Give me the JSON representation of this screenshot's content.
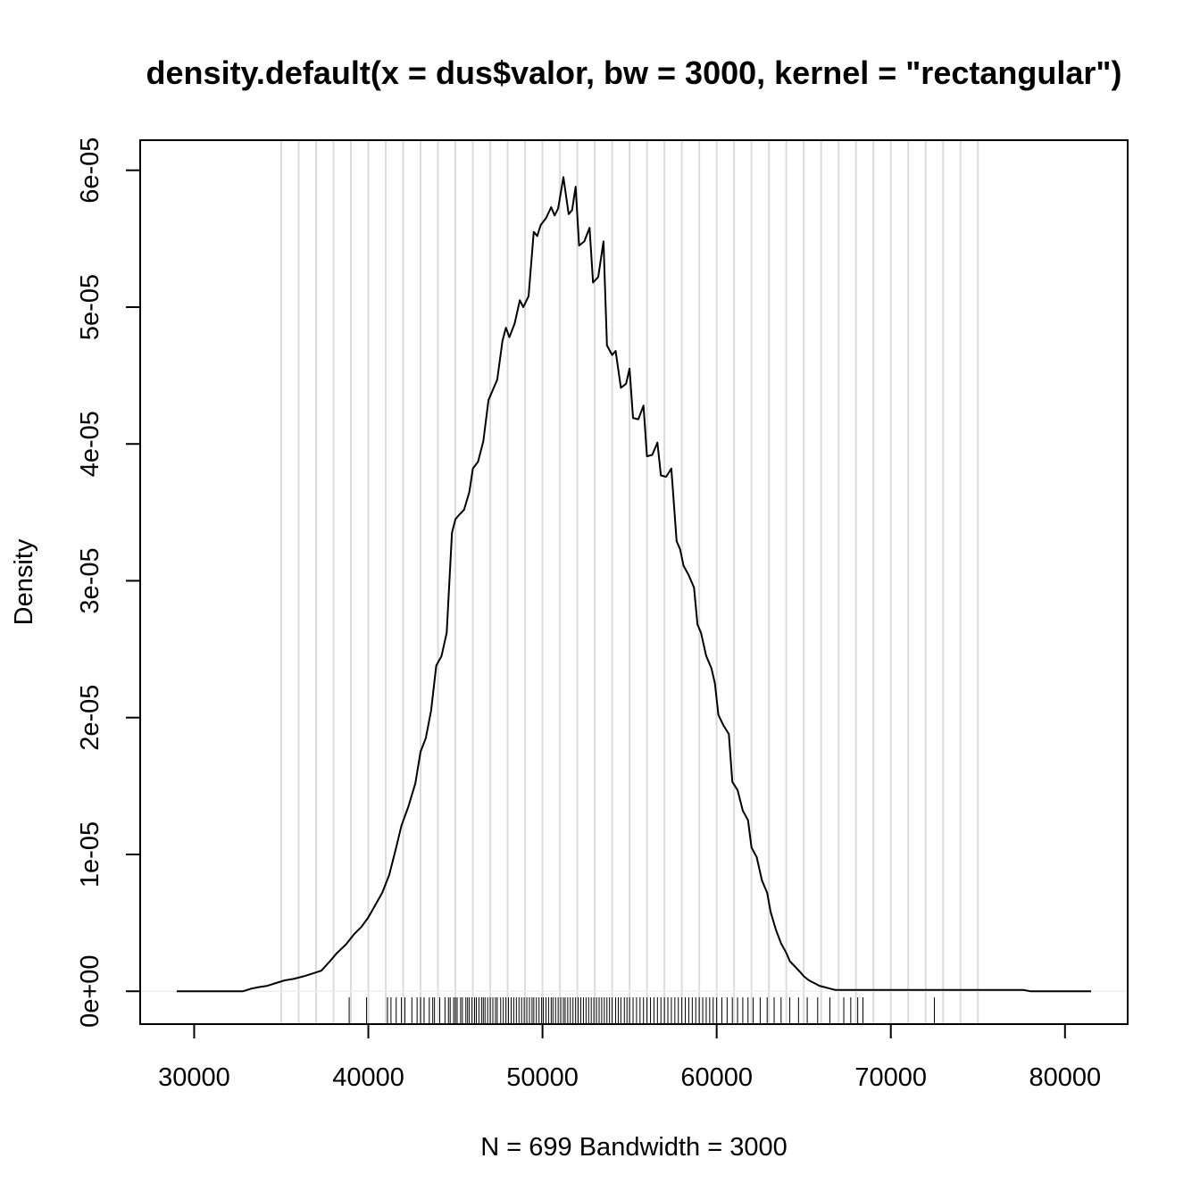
{
  "chart_data": {
    "type": "line",
    "title": "density.default(x = dus$valor, bw = 3000, kernel = \"rectangular\")",
    "xlabel": "N = 699   Bandwidth = 3000",
    "ylabel": "Density",
    "xlim": [
      26900,
      83600
    ],
    "ylim": [
      -2.4e-06,
      6.22e-05
    ],
    "x_ticks": [
      30000,
      40000,
      50000,
      60000,
      70000,
      80000
    ],
    "x_tick_labels": [
      "30000",
      "40000",
      "50000",
      "60000",
      "70000",
      "80000"
    ],
    "y_ticks": [
      0,
      1e-05,
      2e-05,
      3e-05,
      4e-05,
      5e-05,
      6e-05
    ],
    "y_tick_labels": [
      "0e+00",
      "1e-05",
      "2e-05",
      "3e-05",
      "4e-05",
      "5e-05",
      "6e-05"
    ],
    "grid": "vertical lines every 1000 from 35000 to 75000",
    "grid_x": [
      35000,
      36000,
      37000,
      38000,
      39000,
      40000,
      41000,
      42000,
      43000,
      44000,
      45000,
      46000,
      47000,
      48000,
      49000,
      50000,
      51000,
      52000,
      53000,
      54000,
      55000,
      56000,
      57000,
      58000,
      59000,
      60000,
      61000,
      62000,
      63000,
      64000,
      65000,
      66000,
      67000,
      68000,
      69000,
      70000,
      71000,
      72000,
      73000,
      74000,
      75000
    ],
    "series": [
      {
        "x": [
          29000,
          30000,
          31000,
          32000,
          32800,
          33300,
          33700,
          34200,
          34700,
          35200,
          35700,
          36300,
          36800,
          37300,
          37800,
          38200,
          38700,
          39200,
          39600,
          40000,
          40400,
          40800,
          41200,
          41600,
          41900,
          42300,
          42700,
          43000,
          43300,
          43600,
          43900,
          44200,
          44500,
          44800,
          45000,
          45200,
          45500,
          45800,
          46000,
          46300,
          46600,
          46900,
          47100,
          47400,
          47700,
          47900,
          48100,
          48400,
          48700,
          48900,
          49200,
          49500,
          49700,
          49900,
          50200,
          50500,
          50700,
          50900,
          51200,
          51500,
          51700,
          51900,
          52100,
          52400,
          52700,
          52900,
          53200,
          53500,
          53700,
          54000,
          54200,
          54500,
          54800,
          55000,
          55200,
          55500,
          55800,
          56000,
          56300,
          56600,
          56800,
          57100,
          57400,
          57700,
          57900,
          58100,
          58400,
          58700,
          58900,
          59100,
          59400,
          59700,
          59900,
          60100,
          60400,
          60700,
          60900,
          61200,
          61500,
          61800,
          62000,
          62300,
          62600,
          62900,
          63100,
          63400,
          63700,
          64000,
          64200,
          64500,
          64800,
          65000,
          65300,
          65600,
          65900,
          66200,
          66500,
          66800,
          67100,
          67400,
          67700,
          68000,
          68300,
          68600,
          68900,
          69200,
          69500,
          69800,
          70100,
          70400,
          70700,
          71000,
          71300,
          71600,
          71900,
          72200,
          72500,
          72800,
          73100,
          73400,
          73700,
          74000,
          75000,
          76000,
          77000,
          77600,
          78000,
          79000,
          80000,
          81000,
          81500
        ],
        "y": [
          0.0,
          0.0,
          0.0,
          0.0,
          0.0,
          2e-07,
          3e-07,
          4e-07,
          6e-07,
          8e-07,
          9e-07,
          1.1e-06,
          1.3e-06,
          1.5e-06,
          2.2e-06,
          2.8e-06,
          3.4e-06,
          4.2e-06,
          4.7e-06,
          5.4e-06,
          6.3e-06,
          7.2e-06,
          8.5e-06,
          1.05e-05,
          1.21e-05,
          1.35e-05,
          1.52e-05,
          1.75e-05,
          1.85e-05,
          2.05e-05,
          2.38e-05,
          2.45e-05,
          2.62e-05,
          3.35e-05,
          3.45e-05,
          3.48e-05,
          3.52e-05,
          3.65e-05,
          3.82e-05,
          3.87e-05,
          4.02e-05,
          4.32e-05,
          4.38e-05,
          4.47e-05,
          4.75e-05,
          4.85e-05,
          4.78e-05,
          4.88e-05,
          5.05e-05,
          5e-05,
          5.08e-05,
          5.55e-05,
          5.52e-05,
          5.6e-05,
          5.65e-05,
          5.73e-05,
          5.67e-05,
          5.72e-05,
          5.95e-05,
          5.68e-05,
          5.71e-05,
          5.88e-05,
          5.45e-05,
          5.48e-05,
          5.58e-05,
          5.18e-05,
          5.22e-05,
          5.48e-05,
          4.72e-05,
          4.65e-05,
          4.68e-05,
          4.41e-05,
          4.44e-05,
          4.55e-05,
          4.19e-05,
          4.18e-05,
          4.28e-05,
          3.91e-05,
          3.92e-05,
          4.01e-05,
          3.77e-05,
          3.76e-05,
          3.82e-05,
          3.29e-05,
          3.23e-05,
          3.11e-05,
          3.04e-05,
          2.95e-05,
          2.68e-05,
          2.62e-05,
          2.45e-05,
          2.36e-05,
          2.25e-05,
          2.02e-05,
          1.94e-05,
          1.88e-05,
          1.53e-05,
          1.47e-05,
          1.32e-05,
          1.25e-05,
          1.05e-05,
          9.8e-06,
          8.1e-06,
          7.2e-06,
          5.8e-06,
          4.5e-06,
          3.5e-06,
          2.8e-06,
          2.2e-06,
          1.8e-06,
          1.4e-06,
          1.1e-06,
          8e-07,
          6e-07,
          4e-07,
          3e-07,
          2e-07,
          1e-07,
          1e-07,
          1e-07,
          1e-07,
          1e-07,
          1e-07,
          1e-07,
          1e-07,
          1e-07,
          1e-07,
          1e-07,
          1e-07,
          1e-07,
          1e-07,
          1e-07,
          1e-07,
          1e-07,
          1e-07,
          1e-07,
          1e-07,
          1e-07,
          1e-07,
          1e-07,
          1e-07,
          1e-07,
          1e-07,
          1e-07,
          1e-07,
          1e-07,
          0.0,
          0.0,
          0.0,
          0.0,
          0.0
        ]
      }
    ],
    "rug": [
      38900,
      39900,
      41100,
      41300,
      41600,
      41900,
      42100,
      42500,
      42800,
      43000,
      43200,
      43500,
      43700,
      43800,
      44100,
      44400,
      44600,
      44700,
      44900,
      45000,
      45100,
      45300,
      45400,
      45600,
      45700,
      45800,
      45950,
      46100,
      46200,
      46350,
      46500,
      46600,
      46700,
      46850,
      47000,
      47150,
      47300,
      47400,
      47600,
      47750,
      47900,
      48050,
      48200,
      48350,
      48500,
      48650,
      48800,
      48950,
      49100,
      49250,
      49400,
      49500,
      49650,
      49800,
      49950,
      50050,
      50200,
      50350,
      50500,
      50600,
      50750,
      50900,
      51050,
      51200,
      51300,
      51450,
      51600,
      51750,
      51900,
      52050,
      52200,
      52350,
      52500,
      52650,
      52800,
      52950,
      53100,
      53250,
      53400,
      53550,
      53700,
      53850,
      54000,
      54200,
      54350,
      54500,
      54700,
      54850,
      55000,
      55200,
      55400,
      55600,
      55800,
      56000,
      56200,
      56400,
      56600,
      56800,
      57000,
      57200,
      57400,
      57600,
      57800,
      58000,
      58200,
      58400,
      58600,
      58800,
      59000,
      59200,
      59400,
      59600,
      59800,
      60000,
      60300,
      60600,
      60900,
      61200,
      61500,
      61800,
      62100,
      62500,
      62900,
      63300,
      63700,
      64200,
      64700,
      65200,
      65800,
      66500,
      67300,
      67700,
      68100,
      68400,
      72500
    ]
  }
}
